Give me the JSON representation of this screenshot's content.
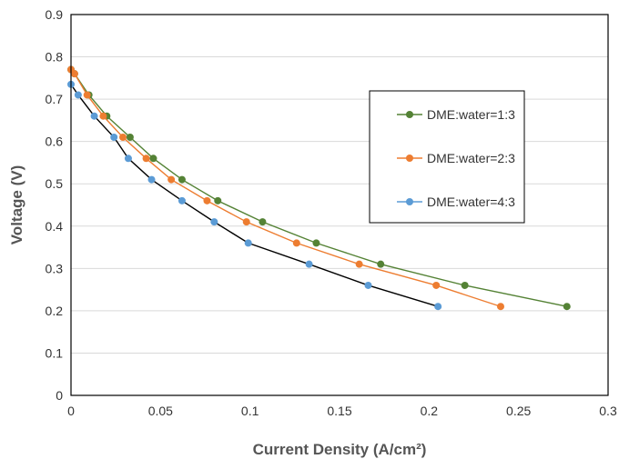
{
  "chart_data": {
    "type": "line",
    "title": "",
    "xlabel": "Current Density (A/cm²)",
    "ylabel": "Voltage (V)",
    "xlim": [
      0,
      0.3
    ],
    "ylim": [
      0,
      0.9
    ],
    "x_ticks": [
      "0",
      "0.05",
      "0.1",
      "0.15",
      "0.2",
      "0.25",
      "0.3"
    ],
    "y_ticks": [
      "0",
      "0.1",
      "0.2",
      "0.3",
      "0.4",
      "0.5",
      "0.6",
      "0.7",
      "0.8",
      "0.9"
    ],
    "grid": "horizontal",
    "legend_position": "upper-right",
    "series": [
      {
        "name": "DME:water=1:3",
        "color": "#548235",
        "marker_color": "#548235",
        "points": [
          [
            0.0,
            0.77
          ],
          [
            0.002,
            0.76
          ],
          [
            0.01,
            0.71
          ],
          [
            0.02,
            0.66
          ],
          [
            0.033,
            0.61
          ],
          [
            0.046,
            0.56
          ],
          [
            0.062,
            0.51
          ],
          [
            0.082,
            0.46
          ],
          [
            0.107,
            0.41
          ],
          [
            0.137,
            0.36
          ],
          [
            0.173,
            0.31
          ],
          [
            0.22,
            0.26
          ],
          [
            0.277,
            0.21
          ]
        ]
      },
      {
        "name": "DME:water=2:3",
        "color": "#ED7D31",
        "marker_color": "#ED7D31",
        "points": [
          [
            0.0,
            0.77
          ],
          [
            0.002,
            0.76
          ],
          [
            0.009,
            0.71
          ],
          [
            0.018,
            0.66
          ],
          [
            0.029,
            0.61
          ],
          [
            0.042,
            0.56
          ],
          [
            0.056,
            0.51
          ],
          [
            0.076,
            0.46
          ],
          [
            0.098,
            0.41
          ],
          [
            0.126,
            0.36
          ],
          [
            0.161,
            0.31
          ],
          [
            0.204,
            0.26
          ],
          [
            0.24,
            0.21
          ]
        ]
      },
      {
        "name": "DME:water=4:3",
        "color": "#000000",
        "marker_color": "#5B9BD5",
        "points": [
          [
            0.0,
            0.735
          ],
          [
            0.004,
            0.71
          ],
          [
            0.013,
            0.66
          ],
          [
            0.024,
            0.61
          ],
          [
            0.032,
            0.56
          ],
          [
            0.045,
            0.51
          ],
          [
            0.062,
            0.46
          ],
          [
            0.08,
            0.41
          ],
          [
            0.099,
            0.36
          ],
          [
            0.133,
            0.31
          ],
          [
            0.166,
            0.26
          ],
          [
            0.205,
            0.21
          ]
        ]
      }
    ]
  }
}
